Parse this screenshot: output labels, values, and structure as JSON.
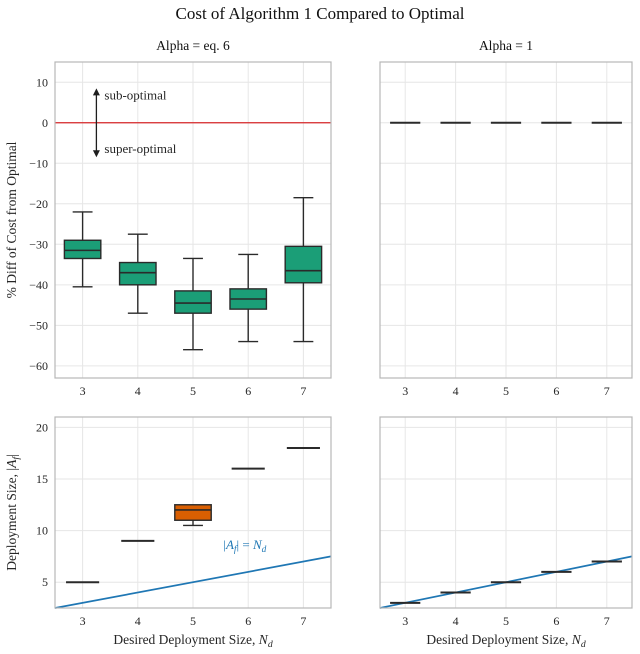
{
  "figure": {
    "title": "Cost of Algorithm 1 Compared to Optimal",
    "colors": {
      "box_green": "#1b9e77",
      "box_orange": "#d95f02",
      "line_blue": "#1f77b4",
      "zero_red": "#d62728",
      "edge": "#2a2a2a",
      "grid": "#e6e6e6",
      "spine": "#b7b7b7",
      "text": "#262626"
    }
  },
  "chart_data": [
    {
      "type": "boxplot",
      "name": "top-left",
      "title": "Alpha = eq. 6",
      "ylabel": "% Diff of Cost from Optimal",
      "xlim": [
        2.5,
        7.5
      ],
      "ylim": [
        -63,
        15
      ],
      "xticks": [
        3,
        4,
        5,
        6,
        7
      ],
      "yticks": [
        10,
        0,
        -10,
        -20,
        -30,
        -40,
        -50,
        -60
      ],
      "show_yticklabels": true,
      "zero_line": 0,
      "annotations": {
        "above": "sub-optimal",
        "below": "super-optimal",
        "arrow_x": 3.25,
        "arrow_top": 8.5,
        "arrow_bottom": -8.5
      },
      "boxes": [
        {
          "x": 3,
          "whislo": -40.5,
          "q1": -33.5,
          "med": -31.5,
          "q3": -29,
          "whishi": -22
        },
        {
          "x": 4,
          "whislo": -47,
          "q1": -40,
          "med": -37,
          "q3": -34.5,
          "whishi": -27.5
        },
        {
          "x": 5,
          "whislo": -56,
          "q1": -47,
          "med": -44.5,
          "q3": -41.5,
          "whishi": -33.5
        },
        {
          "x": 6,
          "whislo": -54,
          "q1": -46,
          "med": -43.5,
          "q3": -41,
          "whishi": -32.5
        },
        {
          "x": 7,
          "whislo": -54,
          "q1": -39.5,
          "med": -36.5,
          "q3": -30.5,
          "whishi": -18.5
        }
      ]
    },
    {
      "type": "boxplot",
      "name": "top-right",
      "title": "Alpha = 1",
      "xlim": [
        2.5,
        7.5
      ],
      "ylim": [
        -63,
        15
      ],
      "xticks": [
        3,
        4,
        5,
        6,
        7
      ],
      "yticks": [
        10,
        0,
        -10,
        -20,
        -30,
        -40,
        -50,
        -60
      ],
      "show_yticklabels": false,
      "boxes": [
        {
          "x": 3,
          "med": 0
        },
        {
          "x": 4,
          "med": 0
        },
        {
          "x": 5,
          "med": 0
        },
        {
          "x": 6,
          "med": 0
        },
        {
          "x": 7,
          "med": 0
        }
      ]
    },
    {
      "type": "boxplot",
      "name": "bottom-left",
      "xlabel": "Desired Deployment Size, N_d",
      "ylabel": "Deployment Size, |A_f|",
      "xlim": [
        2.5,
        7.5
      ],
      "ylim": [
        2.5,
        21
      ],
      "xticks": [
        3,
        4,
        5,
        6,
        7
      ],
      "yticks": [
        5,
        10,
        15,
        20
      ],
      "show_yticklabels": true,
      "line": {
        "label": "|A_f| = N_d",
        "label_x": 5.55,
        "label_y": 8.2,
        "points": [
          [
            2.5,
            2.5
          ],
          [
            7.5,
            7.5
          ]
        ]
      },
      "boxes": [
        {
          "x": 3,
          "med": 5
        },
        {
          "x": 4,
          "med": 9
        },
        {
          "x": 5,
          "whislo": 10.5,
          "q1": 11,
          "med": 12,
          "q3": 12.5,
          "color": "orange"
        },
        {
          "x": 6,
          "med": 16
        },
        {
          "x": 7,
          "med": 18
        }
      ]
    },
    {
      "type": "boxplot",
      "name": "bottom-right",
      "xlabel": "Desired Deployment Size, N_d",
      "xlim": [
        2.5,
        7.5
      ],
      "ylim": [
        2.5,
        21
      ],
      "xticks": [
        3,
        4,
        5,
        6,
        7
      ],
      "yticks": [
        5,
        10,
        15,
        20
      ],
      "show_yticklabels": false,
      "line": {
        "points": [
          [
            2.5,
            2.5
          ],
          [
            7.5,
            7.5
          ]
        ]
      },
      "boxes": [
        {
          "x": 3,
          "med": 3
        },
        {
          "x": 4,
          "med": 4
        },
        {
          "x": 5,
          "med": 5
        },
        {
          "x": 6,
          "med": 6
        },
        {
          "x": 7,
          "med": 7
        }
      ]
    }
  ]
}
